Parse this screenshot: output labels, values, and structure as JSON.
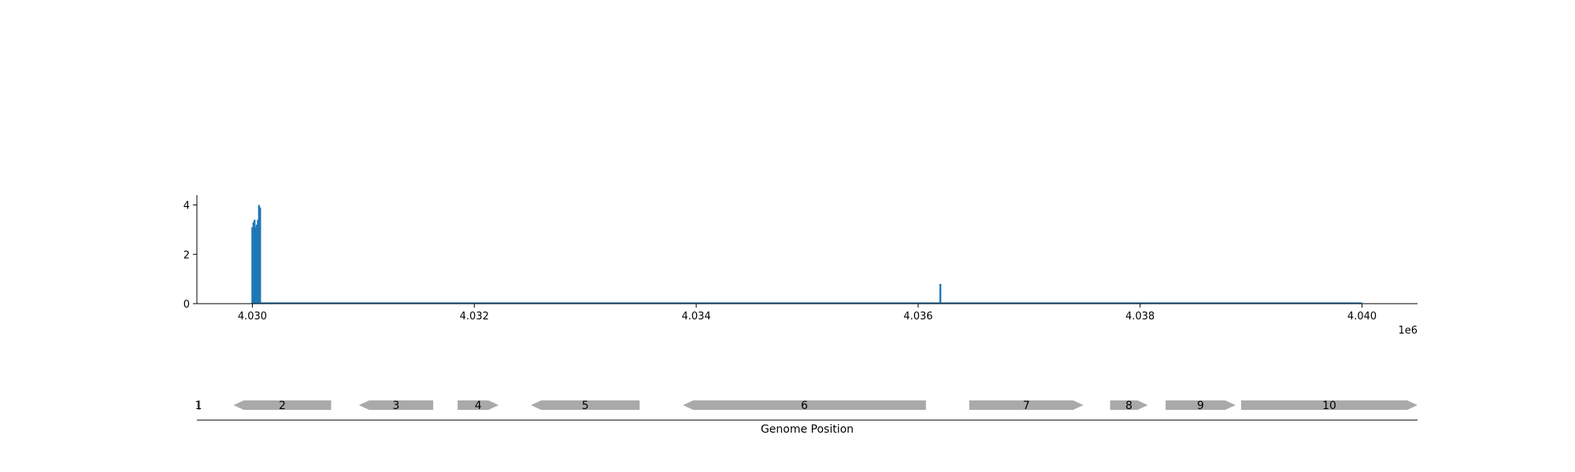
{
  "chart_data": [
    {
      "type": "bar",
      "title": "",
      "xlabel": "",
      "ylabel": "",
      "x_offset_label": "1e6",
      "xlim": [
        4.0295,
        4.0405
      ],
      "ylim": [
        0,
        4.4
      ],
      "x_ticks": [
        4.03,
        4.032,
        4.034,
        4.036,
        4.038,
        4.04
      ],
      "x_tick_labels": [
        "4.030",
        "4.032",
        "4.034",
        "4.036",
        "4.038",
        "4.040"
      ],
      "y_ticks": [
        0,
        2,
        4
      ],
      "y_tick_labels": [
        "0",
        "2",
        "4"
      ],
      "grid": false,
      "color": "#1f77b4",
      "series": [
        {
          "x": [
            4.03,
            4.03001,
            4.03002,
            4.03003,
            4.03004,
            4.03005,
            4.03006,
            4.03007,
            4.0362
          ],
          "values": [
            3.1,
            3.3,
            3.4,
            3.1,
            3.2,
            3.4,
            4.0,
            3.9,
            0.8
          ]
        }
      ],
      "baseline": {
        "x_start": 4.03,
        "x_end": 4.04,
        "value": 0.02
      }
    },
    {
      "type": "gene_track",
      "xlabel": "Genome Position",
      "color": "#a9a9a9",
      "genes": [
        {
          "label": "1",
          "start": 4.0295,
          "end": 4.02953,
          "strand": "-"
        },
        {
          "label": "2",
          "start": 4.02983,
          "end": 4.03071,
          "strand": "-"
        },
        {
          "label": "3",
          "start": 4.03096,
          "end": 4.03163,
          "strand": "-"
        },
        {
          "label": "4",
          "start": 4.03185,
          "end": 4.03222,
          "strand": "+"
        },
        {
          "label": "5",
          "start": 4.03251,
          "end": 4.03349,
          "strand": "-"
        },
        {
          "label": "6",
          "start": 4.03388,
          "end": 4.03607,
          "strand": "-"
        },
        {
          "label": "7",
          "start": 4.03646,
          "end": 4.03749,
          "strand": "+"
        },
        {
          "label": "8",
          "start": 4.03773,
          "end": 4.03807,
          "strand": "+"
        },
        {
          "label": "9",
          "start": 4.03823,
          "end": 4.03886,
          "strand": "+"
        },
        {
          "label": "10",
          "start": 4.03891,
          "end": 4.0405,
          "strand": "+"
        }
      ]
    }
  ]
}
